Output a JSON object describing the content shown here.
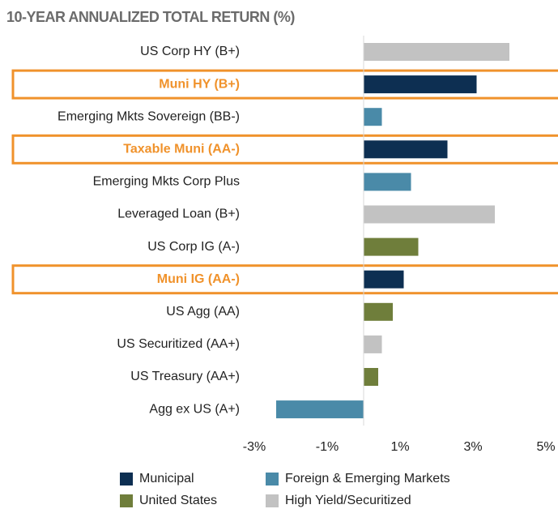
{
  "chart_data": {
    "type": "hbar",
    "title": "10-YEAR ANNUALIZED TOTAL RETURN (%)",
    "categories": [
      "US Corp HY (B+)",
      "Muni HY (B+)",
      "Emerging Mkts Sovereign (BB-)",
      "Taxable Muni (AA-)",
      "Emerging Mkts Corp Plus",
      "Leveraged Loan (B+)",
      "US Corp IG (A-)",
      "Muni IG (AA-)",
      "US Agg (AA)",
      "US Securitized (AA+)",
      "US Treasury (AA+)",
      "Agg ex US (A+)"
    ],
    "values": [
      4.0,
      3.1,
      0.5,
      2.3,
      1.3,
      3.6,
      1.5,
      1.1,
      0.8,
      0.5,
      0.4,
      -2.4
    ],
    "groups": [
      3,
      0,
      1,
      0,
      1,
      3,
      2,
      0,
      2,
      3,
      2,
      1
    ],
    "highlighted": [
      1,
      3,
      7
    ],
    "highlight_color": "#f0922b",
    "legend": [
      {
        "name": "Municipal",
        "color": "#0d2f52"
      },
      {
        "name": "Foreign & Emerging Markets",
        "color": "#4a8aa8"
      },
      {
        "name": "United States",
        "color": "#6f7e3b"
      },
      {
        "name": "High Yield/Securitized",
        "color": "#c2c2c2"
      }
    ],
    "xlim": [
      -3.5,
      5.3
    ],
    "xticks": [
      {
        "value": -3,
        "label": "-3%"
      },
      {
        "value": -1,
        "label": "-1%"
      },
      {
        "value": 1,
        "label": "1%"
      },
      {
        "value": 3,
        "label": "3%"
      },
      {
        "value": 5,
        "label": "5%"
      }
    ]
  }
}
